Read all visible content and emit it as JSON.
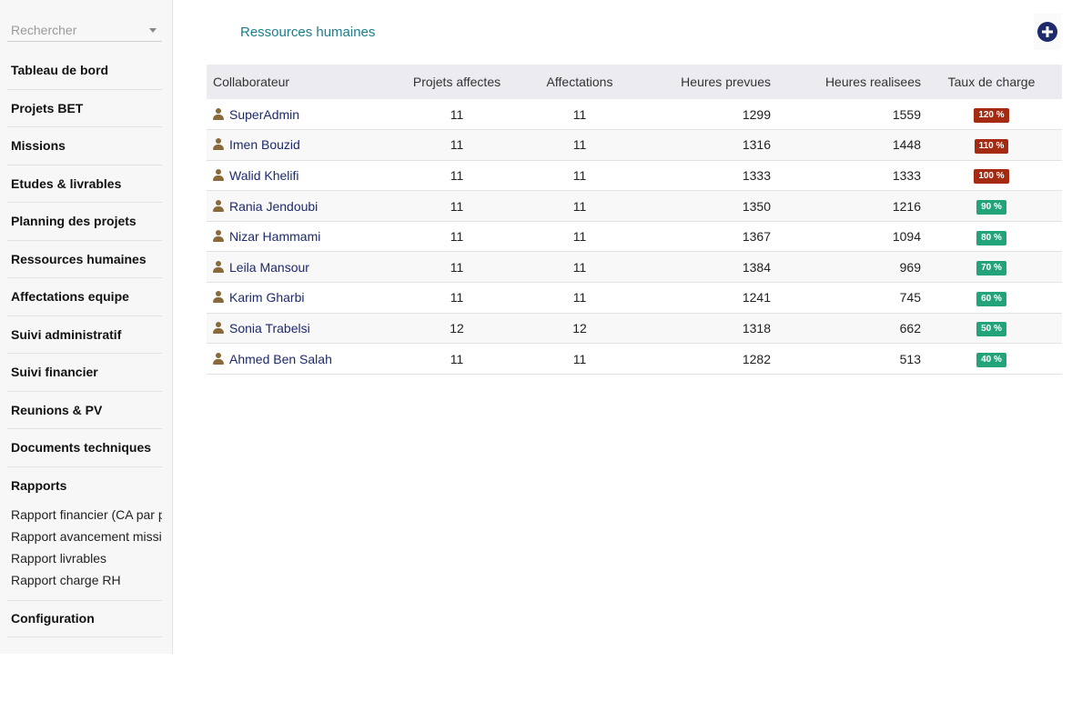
{
  "search": {
    "placeholder": "Rechercher"
  },
  "sidebar": {
    "items": [
      "Tableau de bord",
      "Projets BET",
      "Missions",
      "Etudes & livrables",
      "Planning des projets",
      "Ressources humaines",
      "Affectations equipe",
      "Suivi administratif",
      "Suivi financier",
      "Reunions & PV",
      "Documents techniques"
    ],
    "reports": {
      "title": "Rapports",
      "items": [
        "Rapport financier (CA par projet)",
        "Rapport avancement missions",
        "Rapport livrables",
        "Rapport charge RH"
      ]
    },
    "config": "Configuration"
  },
  "main": {
    "title": "Ressources humaines",
    "add_icon": "plus-circle-icon",
    "columns": [
      "Collaborateur",
      "Projets affectes",
      "Affectations",
      "Heures prevues",
      "Heures realisees",
      "Taux de charge"
    ],
    "rows": [
      {
        "name": "SuperAdmin",
        "projets": "11",
        "affectations": "11",
        "prevues": "1299",
        "realisees": "1559",
        "taux": "120 %",
        "level": "over"
      },
      {
        "name": "Imen Bouzid",
        "projets": "11",
        "affectations": "11",
        "prevues": "1316",
        "realisees": "1448",
        "taux": "110 %",
        "level": "over"
      },
      {
        "name": "Walid Khelifi",
        "projets": "11",
        "affectations": "11",
        "prevues": "1333",
        "realisees": "1333",
        "taux": "100 %",
        "level": "over"
      },
      {
        "name": "Rania Jendoubi",
        "projets": "11",
        "affectations": "11",
        "prevues": "1350",
        "realisees": "1216",
        "taux": "90 %",
        "level": "ok"
      },
      {
        "name": "Nizar Hammami",
        "projets": "11",
        "affectations": "11",
        "prevues": "1367",
        "realisees": "1094",
        "taux": "80 %",
        "level": "ok"
      },
      {
        "name": "Leila Mansour",
        "projets": "11",
        "affectations": "11",
        "prevues": "1384",
        "realisees": "969",
        "taux": "70 %",
        "level": "ok"
      },
      {
        "name": "Karim Gharbi",
        "projets": "11",
        "affectations": "11",
        "prevues": "1241",
        "realisees": "745",
        "taux": "60 %",
        "level": "ok"
      },
      {
        "name": "Sonia Trabelsi",
        "projets": "12",
        "affectations": "12",
        "prevues": "1318",
        "realisees": "662",
        "taux": "50 %",
        "level": "ok"
      },
      {
        "name": "Ahmed Ben Salah",
        "projets": "11",
        "affectations": "11",
        "prevues": "1282",
        "realisees": "513",
        "taux": "40 %",
        "level": "ok"
      }
    ]
  },
  "colors": {
    "badge_over": "#a52a12",
    "badge_ok": "#23a37a",
    "title": "#1a7f8a",
    "link": "#1d2a6b",
    "user_icon": "#8a6a3a"
  }
}
